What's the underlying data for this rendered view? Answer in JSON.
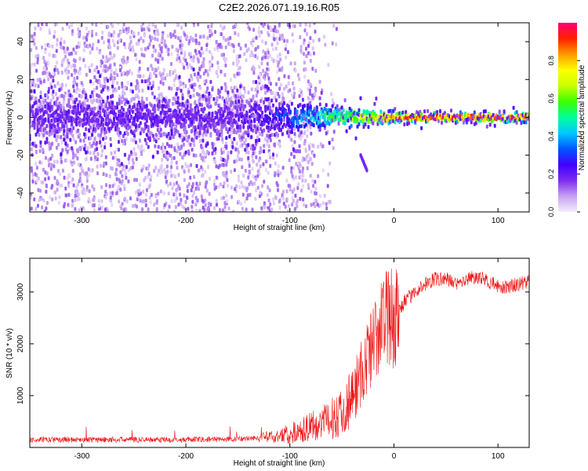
{
  "figure": {
    "title": "C2E2.2026.071.19.16.R05"
  },
  "chart_data": [
    {
      "type": "heatmap",
      "xlabel": "Height of straight line (km)",
      "ylabel": "Frequency (Hz)",
      "xlim": [
        -350,
        130
      ],
      "ylim": [
        -50,
        50
      ],
      "x_ticks": [
        -300,
        -200,
        -100,
        0,
        100
      ],
      "y_ticks": [
        -40,
        -20,
        0,
        20,
        40
      ],
      "x_tick_labels": [
        "-300",
        "-200",
        "-100",
        "0",
        "100"
      ],
      "y_tick_labels": [
        "-40",
        "-20",
        "0",
        "20",
        "40"
      ],
      "colorbar": {
        "label": "Normalized spectral amplitude",
        "range": [
          0,
          1
        ],
        "ticks": [
          0.0,
          0.2,
          0.4,
          0.6,
          0.8
        ],
        "tick_labels": [
          "0.0",
          "0.2",
          "0.4",
          "0.6",
          "0.8"
        ],
        "colormap": [
          "#f5eefc",
          "#c6a2f2",
          "#7d2cf0",
          "#4000ff",
          "#0057ff",
          "#00c8ff",
          "#00ff9a",
          "#3cff00",
          "#c8ff00",
          "#ffff00",
          "#ff9a00",
          "#ff2000",
          "#ff0070"
        ]
      },
      "features": {
        "band_center_hz": 0,
        "band_halfwidth_hz": [
          8,
          2
        ],
        "band_peak_amplitude": [
          0.2,
          0.95
        ],
        "diffuse_scatter_limit_km": -75,
        "side_feature": {
          "x": [
            -32,
            -26
          ],
          "y": [
            -20,
            -28
          ]
        }
      }
    },
    {
      "type": "line",
      "xlabel": "Height of straight line (km)",
      "ylabel": "SNR (10 * v/v)",
      "xlim": [
        -350,
        130
      ],
      "ylim": [
        0,
        3650
      ],
      "x_ticks": [
        -300,
        -200,
        -100,
        0,
        100
      ],
      "y_ticks": [
        1000,
        2000,
        3000
      ],
      "x_tick_labels": [
        "-300",
        "-200",
        "-100",
        "0",
        "100"
      ],
      "y_tick_labels": [
        "1000",
        "2000",
        "3000"
      ],
      "line_color": "#ee1111",
      "series": [
        {
          "name": "SNR",
          "x": [
            -350,
            -300,
            -250,
            -200,
            -150,
            -120,
            -100,
            -80,
            -60,
            -50,
            -40,
            -30,
            -20,
            -10,
            0,
            10,
            20,
            30,
            40,
            50,
            60,
            70,
            80,
            90,
            100,
            110,
            120,
            130
          ],
          "y": [
            150,
            150,
            150,
            150,
            160,
            200,
            260,
            400,
            550,
            700,
            1000,
            1500,
            2000,
            2500,
            2500,
            2800,
            3000,
            3150,
            3250,
            3250,
            3150,
            3250,
            3300,
            3200,
            3100,
            3100,
            3150,
            3200
          ]
        }
      ]
    }
  ]
}
